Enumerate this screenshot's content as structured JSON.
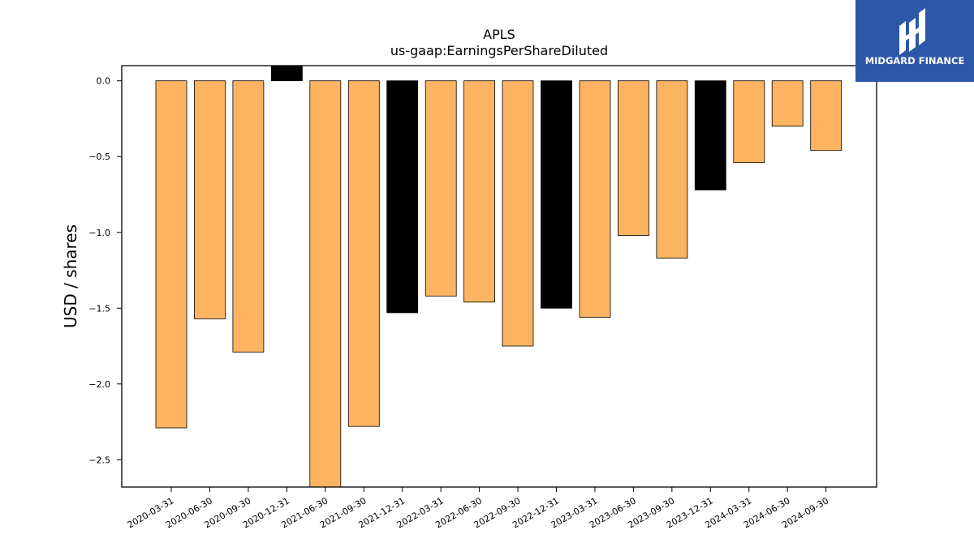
{
  "chart_data": {
    "type": "bar",
    "title": "APLS",
    "subtitle": "us-gaap:EarningsPerShareDiluted",
    "xlabel": "",
    "ylabel": "USD / shares",
    "ylim": [
      -2.68,
      0.1
    ],
    "yticks": [
      "0.0",
      "−0.5",
      "−1.0",
      "−1.5",
      "−2.0",
      "−2.5"
    ],
    "ytick_values": [
      0.0,
      -0.5,
      -1.0,
      -1.5,
      -2.0,
      -2.5
    ],
    "grid": false,
    "categories": [
      "2020-03-31",
      "2020-06-30",
      "2020-09-30",
      "2020-12-31",
      "2021-06-30",
      "2021-09-30",
      "2021-12-31",
      "2022-03-31",
      "2022-06-30",
      "2022-09-30",
      "2022-12-31",
      "2023-03-31",
      "2023-06-30",
      "2023-09-30",
      "2023-12-31",
      "2024-03-31",
      "2024-06-30",
      "2024-09-30"
    ],
    "values": [
      -2.29,
      -1.57,
      -1.79,
      0.1,
      -2.7,
      -2.28,
      -1.53,
      -1.42,
      -1.46,
      -1.75,
      -1.5,
      -1.56,
      -1.02,
      -1.17,
      -0.72,
      -0.54,
      -0.3,
      -0.46
    ],
    "bar_colors": [
      "#fdb462",
      "#fdb462",
      "#fdb462",
      "#000000",
      "#fdb462",
      "#fdb462",
      "#000000",
      "#fdb462",
      "#fdb462",
      "#fdb462",
      "#000000",
      "#fdb462",
      "#fdb462",
      "#fdb462",
      "#000000",
      "#fdb462",
      "#fdb462",
      "#fdb462"
    ]
  },
  "logo": {
    "text": "MIDGARD FINANCE",
    "color": "#2d57a8"
  }
}
